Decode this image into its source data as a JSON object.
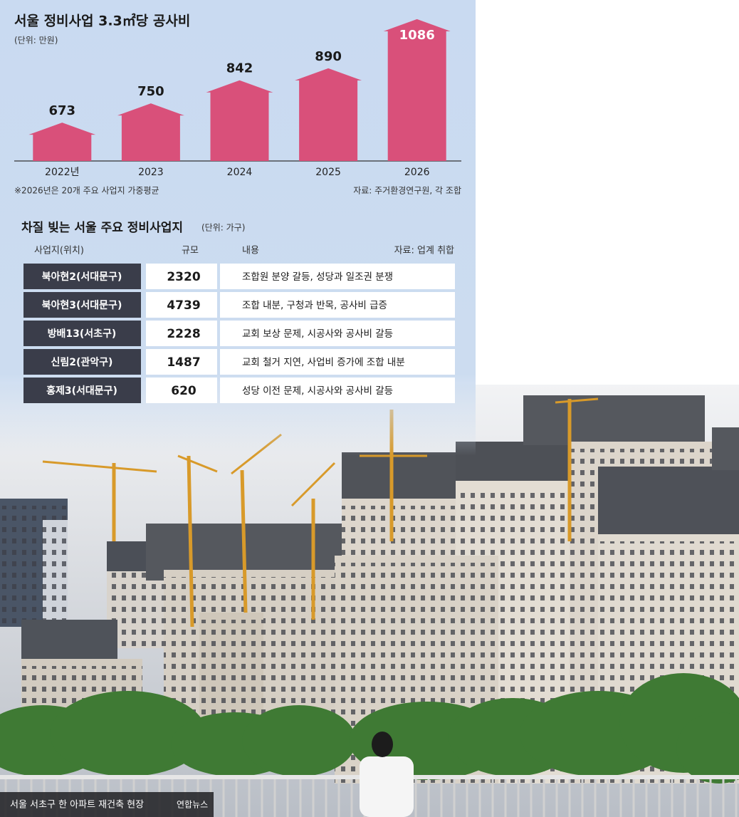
{
  "chart_data": {
    "type": "bar",
    "title": "서울 정비사업 3.3㎡당 공사비",
    "unit": "(단위: 만원)",
    "categories": [
      "2022년",
      "2023",
      "2024",
      "2025",
      "2026"
    ],
    "values": [
      673,
      750,
      842,
      890,
      1086
    ],
    "color": "#d9507a",
    "ylim": [
      520,
      1100
    ],
    "note": "※2026년은 20개 주요 사업지 가중평균",
    "source": "자료: 주거환경연구원, 각 조합"
  },
  "table": {
    "title": "차질 빚는 서울 주요 정비사업지",
    "unit": "(단위: 가구)",
    "headers": [
      "사업지(위치)",
      "규모",
      "내용"
    ],
    "source": "자료: 업계 취합",
    "rows": [
      [
        "북아현2(서대문구)",
        2320,
        "조합원 분양 갈등, 성당과 일조권 분쟁"
      ],
      [
        "북아현3(서대문구)",
        4739,
        "조합 내분, 구청과 반목, 공사비 급증"
      ],
      [
        "방배13(서초구)",
        2228,
        "교회 보상 문제, 시공사와 공사비 갈등"
      ],
      [
        "신림2(관악구)",
        1487,
        "교회 철거 지연, 사업비 증가에 조합 내분"
      ],
      [
        "홍제3(서대문구)",
        620,
        "성당 이전 문제, 시공사와 공사비 갈등"
      ]
    ]
  },
  "photo": {
    "caption": "서울 서초구 한 아파트 재건축 현장",
    "credit": "연합뉴스"
  }
}
